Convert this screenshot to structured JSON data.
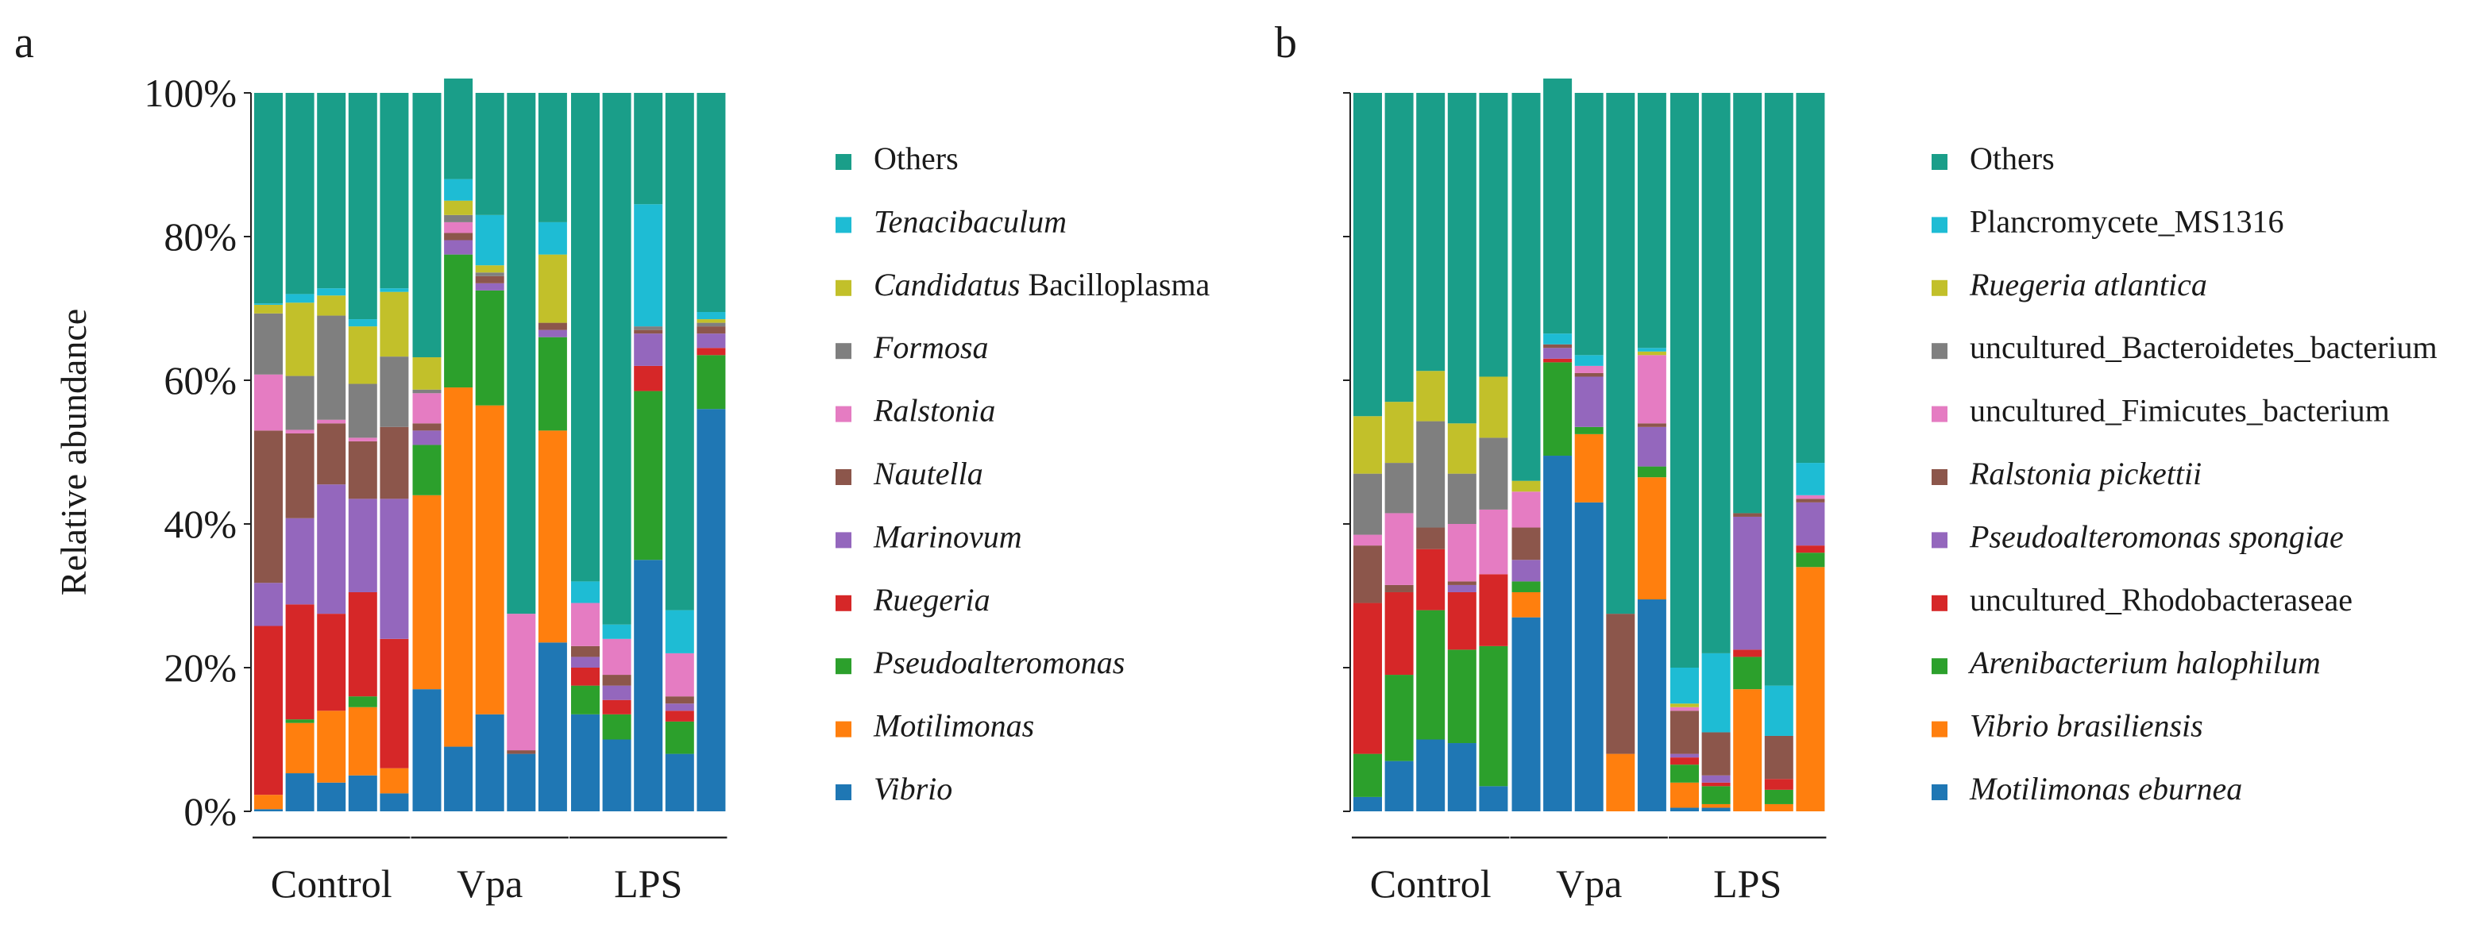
{
  "colors": {
    "Others": "#1a9e89",
    "cyan": "#1ebcd4",
    "olive": "#c2c02a",
    "gray": "#7f7f7f",
    "pink": "#e57cc2",
    "brown": "#8c564b",
    "purple": "#9467bd",
    "red": "#d62728",
    "green": "#2ca02c",
    "orange": "#ff7f0e",
    "blue": "#1f77b4"
  },
  "chart_data": [
    {
      "panel": "a",
      "type": "bar",
      "stacked": true,
      "ylabel": "Relative abundance",
      "ylim": [
        0,
        100
      ],
      "yticks": [
        "0%",
        "20%",
        "40%",
        "60%",
        "80%",
        "100%"
      ],
      "groups": [
        {
          "label": "Control",
          "bars": [
            0,
            1,
            2,
            3,
            4
          ]
        },
        {
          "label": "Vpa",
          "bars": [
            5,
            6,
            7,
            8,
            9
          ]
        },
        {
          "label": "LPS",
          "bars": [
            10,
            11,
            12,
            13,
            14
          ]
        }
      ],
      "legend": [
        {
          "parts": [
            {
              "text": "Others",
              "italic": false
            }
          ],
          "color": "Others"
        },
        {
          "parts": [
            {
              "text": "Tenacibaculum",
              "italic": true
            }
          ],
          "color": "cyan"
        },
        {
          "parts": [
            {
              "text": "Candidatus",
              "italic": true
            },
            {
              "text": " Bacilloplasma",
              "italic": false
            }
          ],
          "color": "olive"
        },
        {
          "parts": [
            {
              "text": "Formosa",
              "italic": true
            }
          ],
          "color": "gray"
        },
        {
          "parts": [
            {
              "text": "Ralstonia",
              "italic": true
            }
          ],
          "color": "pink"
        },
        {
          "parts": [
            {
              "text": "Nautella",
              "italic": true
            }
          ],
          "color": "brown"
        },
        {
          "parts": [
            {
              "text": "Marinovum",
              "italic": true
            }
          ],
          "color": "purple"
        },
        {
          "parts": [
            {
              "text": "Ruegeria",
              "italic": true
            }
          ],
          "color": "red"
        },
        {
          "parts": [
            {
              "text": "Pseudoalteromonas",
              "italic": true
            }
          ],
          "color": "green"
        },
        {
          "parts": [
            {
              "text": "Motilimonas",
              "italic": true
            }
          ],
          "color": "orange"
        },
        {
          "parts": [
            {
              "text": "Vibrio",
              "italic": true
            }
          ],
          "color": "blue"
        }
      ],
      "series_order": [
        "Vibrio",
        "Motilimonas",
        "Pseudoalteromonas",
        "Ruegeria",
        "Marinovum",
        "Nautella",
        "Ralstonia",
        "Formosa",
        "Candidatus Bacilloplasma",
        "Tenacibaculum",
        "Others"
      ],
      "series_colors": [
        "blue",
        "orange",
        "green",
        "red",
        "purple",
        "brown",
        "pink",
        "gray",
        "olive",
        "cyan",
        "Others"
      ],
      "bars": [
        [
          0.3,
          2.0,
          0.0,
          23.5,
          6.0,
          21.2,
          7.8,
          8.5,
          1.2,
          0.2,
          29.3
        ],
        [
          5.3,
          7.0,
          0.5,
          16.0,
          12.0,
          11.8,
          0.5,
          7.5,
          10.2,
          1.2,
          28.0
        ],
        [
          4.0,
          10.0,
          0.0,
          13.5,
          18.0,
          8.5,
          0.5,
          14.5,
          2.8,
          1.0,
          27.2
        ],
        [
          5.0,
          9.5,
          1.5,
          14.5,
          13.0,
          8.0,
          0.5,
          7.5,
          8.0,
          1.0,
          31.5
        ],
        [
          2.5,
          3.5,
          0.0,
          18.0,
          19.5,
          10.0,
          0.0,
          9.8,
          9.0,
          0.5,
          27.2
        ],
        [
          17.0,
          27.0,
          7.0,
          0.0,
          2.0,
          1.0,
          4.2,
          0.5,
          4.5,
          0.0,
          36.8
        ],
        [
          9.0,
          50.0,
          18.5,
          0.0,
          2.0,
          1.0,
          1.5,
          1.0,
          2.0,
          3.0,
          14.0
        ],
        [
          13.5,
          43.0,
          16.0,
          0.0,
          1.0,
          1.0,
          0.0,
          0.5,
          1.0,
          7.0,
          17.0
        ],
        [
          8.0,
          0.0,
          0.0,
          0.0,
          0.0,
          0.5,
          19.0,
          0.0,
          0.0,
          0.0,
          72.5
        ],
        [
          23.5,
          29.5,
          13.0,
          0.0,
          1.0,
          1.0,
          0.0,
          0.0,
          9.5,
          4.5,
          18.0
        ],
        [
          13.5,
          0.0,
          4.0,
          2.5,
          1.5,
          1.5,
          6.0,
          0.0,
          0.0,
          3.0,
          68.0
        ],
        [
          10.0,
          0.0,
          3.5,
          2.0,
          2.0,
          1.5,
          5.0,
          0.0,
          0.0,
          2.0,
          74.0
        ],
        [
          35.0,
          0.0,
          23.5,
          3.5,
          4.5,
          0.5,
          0.0,
          0.5,
          0.0,
          17.0,
          15.5
        ],
        [
          8.0,
          0.0,
          4.5,
          1.5,
          1.0,
          1.0,
          6.0,
          0.0,
          0.0,
          6.0,
          72.0
        ],
        [
          56.0,
          0.0,
          7.5,
          1.0,
          2.0,
          1.0,
          0.0,
          0.5,
          0.5,
          1.0,
          30.5
        ]
      ]
    },
    {
      "panel": "b",
      "type": "bar",
      "stacked": true,
      "ylabel": "",
      "ylim": [
        0,
        100
      ],
      "yticks": [],
      "groups": [
        {
          "label": "Control",
          "bars": [
            0,
            1,
            2,
            3,
            4
          ]
        },
        {
          "label": "Vpa",
          "bars": [
            5,
            6,
            7,
            8,
            9
          ]
        },
        {
          "label": "LPS",
          "bars": [
            10,
            11,
            12,
            13,
            14
          ]
        }
      ],
      "legend": [
        {
          "parts": [
            {
              "text": "Others",
              "italic": false
            }
          ],
          "color": "Others"
        },
        {
          "parts": [
            {
              "text": "Plancromycete_MS1316",
              "italic": false
            }
          ],
          "color": "cyan"
        },
        {
          "parts": [
            {
              "text": "Ruegeria atlantica",
              "italic": true
            }
          ],
          "color": "olive"
        },
        {
          "parts": [
            {
              "text": "uncultured_Bacteroidetes_bacterium",
              "italic": false
            }
          ],
          "color": "gray"
        },
        {
          "parts": [
            {
              "text": "uncultured_Fimicutes_bacterium",
              "italic": false
            }
          ],
          "color": "pink"
        },
        {
          "parts": [
            {
              "text": "Ralstonia pickettii",
              "italic": true
            }
          ],
          "color": "brown"
        },
        {
          "parts": [
            {
              "text": "Pseudoalteromonas spongiae",
              "italic": true
            }
          ],
          "color": "purple"
        },
        {
          "parts": [
            {
              "text": "uncultured_Rhodobacteraseae",
              "italic": false
            }
          ],
          "color": "red"
        },
        {
          "parts": [
            {
              "text": "Arenibacterium halophilum",
              "italic": true
            }
          ],
          "color": "green"
        },
        {
          "parts": [
            {
              "text": "Vibrio brasiliensis",
              "italic": true
            }
          ],
          "color": "orange"
        },
        {
          "parts": [
            {
              "text": "Motilimonas eburnea",
              "italic": true
            }
          ],
          "color": "blue"
        }
      ],
      "series_order": [
        "Motilimonas eburnea",
        "Vibrio brasiliensis",
        "Arenibacterium halophilum",
        "uncultured_Rhodobacteraseae",
        "Pseudoalteromonas spongiae",
        "Ralstonia pickettii",
        "uncultured_Fimicutes_bacterium",
        "uncultured_Bacteroidetes_bacterium",
        "Ruegeria atlantica",
        "Plancromycete_MS1316",
        "Others"
      ],
      "series_colors": [
        "blue",
        "orange",
        "green",
        "red",
        "purple",
        "brown",
        "pink",
        "gray",
        "olive",
        "cyan",
        "Others"
      ],
      "bars": [
        [
          2.0,
          0.0,
          6.0,
          21.0,
          0.0,
          8.0,
          1.5,
          8.5,
          8.0,
          0.0,
          45.0
        ],
        [
          7.0,
          0.0,
          12.0,
          11.5,
          0.0,
          1.0,
          10.0,
          7.0,
          8.5,
          0.0,
          43.0
        ],
        [
          10.0,
          0.0,
          18.0,
          8.5,
          0.0,
          3.0,
          0.0,
          14.8,
          7.0,
          0.0,
          38.7
        ],
        [
          9.5,
          0.0,
          13.0,
          8.0,
          1.0,
          0.5,
          8.0,
          7.0,
          7.0,
          0.0,
          46.0
        ],
        [
          3.5,
          0.0,
          19.5,
          10.0,
          0.0,
          0.0,
          9.0,
          10.0,
          8.5,
          0.0,
          39.5
        ],
        [
          27.0,
          3.5,
          1.5,
          0.0,
          3.0,
          4.5,
          5.0,
          0.0,
          1.5,
          0.0,
          54.0
        ],
        [
          49.5,
          0.0,
          13.0,
          0.5,
          1.5,
          0.5,
          0.0,
          0.0,
          0.0,
          1.5,
          35.5
        ],
        [
          43.0,
          9.5,
          1.0,
          0.0,
          7.0,
          0.5,
          1.0,
          0.0,
          0.0,
          1.5,
          36.5
        ],
        [
          0.0,
          8.0,
          0.0,
          0.0,
          0.0,
          19.5,
          0.0,
          0.0,
          0.0,
          0.0,
          72.5
        ],
        [
          29.5,
          17.0,
          1.5,
          0.0,
          5.5,
          0.5,
          9.5,
          0.0,
          0.5,
          0.5,
          35.5
        ],
        [
          0.5,
          3.5,
          2.5,
          1.0,
          0.5,
          6.0,
          0.5,
          0.0,
          0.5,
          5.0,
          80.0
        ],
        [
          0.5,
          0.5,
          2.5,
          0.5,
          1.0,
          6.0,
          0.0,
          0.0,
          0.0,
          11.0,
          78.0
        ],
        [
          0.0,
          17.0,
          4.5,
          1.0,
          18.5,
          0.5,
          0.0,
          0.0,
          0.0,
          0.0,
          58.5
        ],
        [
          0.0,
          1.0,
          2.0,
          1.5,
          0.0,
          6.0,
          0.0,
          0.0,
          0.0,
          7.0,
          82.5
        ],
        [
          0.0,
          34.0,
          2.0,
          1.0,
          6.0,
          0.5,
          0.5,
          0.0,
          0.0,
          4.5,
          51.5
        ]
      ]
    }
  ]
}
